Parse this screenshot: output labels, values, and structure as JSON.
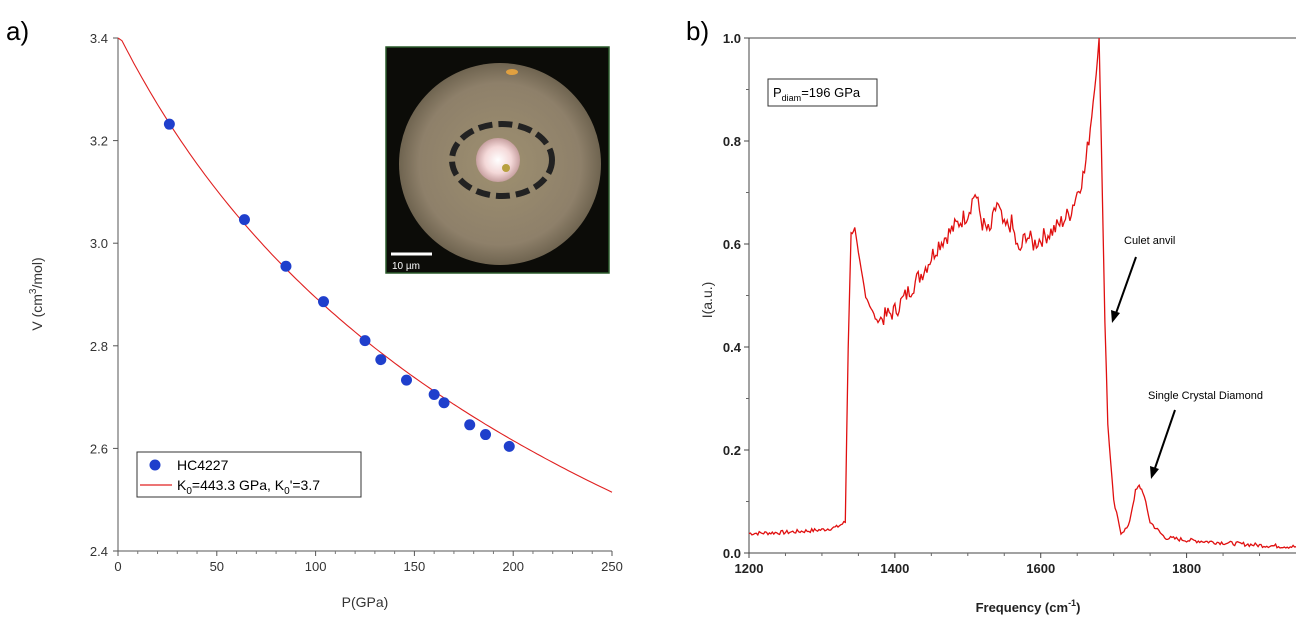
{
  "panels": {
    "a": {
      "label": "a)",
      "legend": {
        "series_data": "HC4227",
        "fit_main": "K",
        "fit_sub1": "0",
        "fit_mid": "=443.3 GPa, K",
        "fit_sub2": "0",
        "fit_end": "'=3.7"
      },
      "inset": {
        "scale_bar_label": "10 µm"
      }
    },
    "b": {
      "label": "b)",
      "pbox": {
        "main": "P",
        "sub": "diam",
        "rest": "=196 GPa"
      },
      "annotations": {
        "culet": "Culet anvil",
        "diamond": "Single Crystal Diamond"
      }
    }
  },
  "colors": {
    "points": "#1f3fcc",
    "fit": "#e02020",
    "spectrum": "#e01010",
    "axis": "#333333"
  },
  "chart_data": [
    {
      "type": "scatter",
      "xlabel": "P(GPa)",
      "ylabel_main": "V (cm",
      "ylabel_sup": "3",
      "ylabel_end": "/mol)",
      "xlim": [
        0,
        250
      ],
      "ylim": [
        2.4,
        3.4
      ],
      "xticks": [
        "0",
        "50",
        "100",
        "150",
        "200",
        "250"
      ],
      "yticks": [
        "2.4",
        "2.6",
        "2.8",
        "3.0",
        "3.2",
        "3.4"
      ],
      "grid": false,
      "legend_position": "bottom-left",
      "series": [
        {
          "name": "HC4227",
          "x": [
            26,
            64,
            85,
            104,
            125,
            133,
            146,
            160,
            165,
            178,
            186,
            198
          ],
          "y": [
            3.232,
            3.046,
            2.955,
            2.886,
            2.81,
            2.773,
            2.733,
            2.705,
            2.689,
            2.646,
            2.627,
            2.604
          ]
        },
        {
          "name": "K0=443.3 GPa, K0'=3.7",
          "fit": {
            "K0": 443.3,
            "K0p": 3.7,
            "V0": 3.41
          }
        }
      ]
    },
    {
      "type": "line",
      "xlabel_main": "Frequency (cm",
      "xlabel_sup": "-1",
      "xlabel_end": ")",
      "ylabel": "I(a.u.)",
      "xlim": [
        1200,
        1950
      ],
      "ylim": [
        0,
        1.0
      ],
      "xticks": [
        "1200",
        "1400",
        "1600",
        "1800"
      ],
      "yticks": [
        "0.0",
        "0.2",
        "0.4",
        "0.6",
        "0.8",
        "1.0"
      ],
      "grid": false,
      "series": [
        {
          "x": [
            1200,
            1250,
            1300,
            1320,
            1332,
            1336,
            1340,
            1345,
            1350,
            1360,
            1375,
            1400,
            1420,
            1440,
            1460,
            1480,
            1500,
            1510,
            1520,
            1530,
            1540,
            1550,
            1560,
            1570,
            1580,
            1590,
            1600,
            1620,
            1640,
            1650,
            1660,
            1670,
            1678,
            1680,
            1683,
            1688,
            1692,
            1700,
            1710,
            1720,
            1730,
            1735,
            1740,
            1750,
            1770,
            1800,
            1850,
            1900,
            1950
          ],
          "y": [
            0.038,
            0.04,
            0.045,
            0.05,
            0.06,
            0.4,
            0.62,
            0.63,
            0.58,
            0.5,
            0.45,
            0.47,
            0.51,
            0.55,
            0.6,
            0.63,
            0.66,
            0.7,
            0.64,
            0.62,
            0.68,
            0.63,
            0.64,
            0.58,
            0.62,
            0.6,
            0.61,
            0.63,
            0.66,
            0.7,
            0.74,
            0.85,
            0.96,
            1.0,
            0.8,
            0.45,
            0.25,
            0.1,
            0.04,
            0.05,
            0.12,
            0.13,
            0.12,
            0.06,
            0.03,
            0.025,
            0.02,
            0.015,
            0.012
          ]
        }
      ]
    }
  ]
}
